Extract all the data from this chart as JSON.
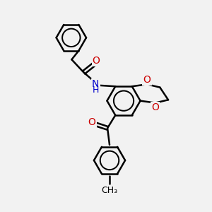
{
  "background_color": "#f2f2f2",
  "bond_color": "#000000",
  "bond_width": 1.8,
  "N_color": "#0000cc",
  "O_color": "#cc0000",
  "font_size": 10,
  "figsize": [
    3.0,
    3.0
  ],
  "dpi": 100,
  "xlim": [
    0,
    10
  ],
  "ylim": [
    0,
    10
  ]
}
